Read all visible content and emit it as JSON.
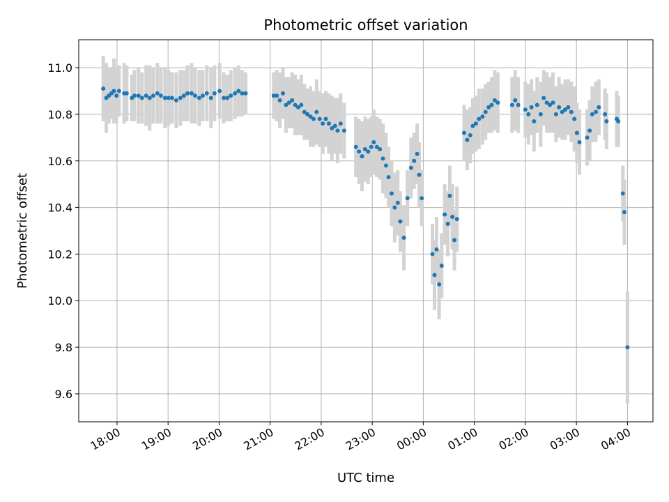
{
  "chart_data": {
    "type": "scatter",
    "title": "Photometric offset variation",
    "xlabel": "UTC time",
    "ylabel": "Photometric offset",
    "grid": true,
    "xlim_hours": [
      17.25,
      28.5
    ],
    "ylim": [
      9.48,
      11.12
    ],
    "x_ticks": [
      {
        "hour": 18,
        "label": "18:00"
      },
      {
        "hour": 19,
        "label": "19:00"
      },
      {
        "hour": 20,
        "label": "20:00"
      },
      {
        "hour": 21,
        "label": "21:00"
      },
      {
        "hour": 22,
        "label": "22:00"
      },
      {
        "hour": 23,
        "label": "23:00"
      },
      {
        "hour": 24,
        "label": "00:00"
      },
      {
        "hour": 25,
        "label": "01:00"
      },
      {
        "hour": 26,
        "label": "02:00"
      },
      {
        "hour": 27,
        "label": "03:00"
      },
      {
        "hour": 28,
        "label": "04:00"
      }
    ],
    "y_ticks": [
      {
        "value": 9.6,
        "label": "9.6"
      },
      {
        "value": 9.8,
        "label": "9.8"
      },
      {
        "value": 10.0,
        "label": "10.0"
      },
      {
        "value": 10.2,
        "label": "10.2"
      },
      {
        "value": 10.4,
        "label": "10.4"
      },
      {
        "value": 10.6,
        "label": "10.6"
      },
      {
        "value": 10.8,
        "label": "10.8"
      },
      {
        "value": 11.0,
        "label": "11.0"
      }
    ],
    "point_color": "#1f77b4",
    "errorbar_color": "#d3d3d3",
    "series": [
      {
        "columns": [
          "utc_hour",
          "offset",
          "error"
        ],
        "points": [
          [
            17.73,
            10.91,
            0.14
          ],
          [
            17.79,
            10.87,
            0.15
          ],
          [
            17.84,
            10.88,
            0.12
          ],
          [
            17.89,
            10.89,
            0.11
          ],
          [
            17.94,
            10.9,
            0.14
          ],
          [
            17.99,
            10.88,
            0.12
          ],
          [
            18.04,
            10.9,
            0.11
          ],
          [
            18.14,
            10.89,
            0.13
          ],
          [
            18.19,
            10.89,
            0.12
          ],
          [
            18.29,
            10.87,
            0.1
          ],
          [
            18.34,
            10.88,
            0.11
          ],
          [
            18.42,
            10.88,
            0.12
          ],
          [
            18.49,
            10.87,
            0.11
          ],
          [
            18.57,
            10.88,
            0.13
          ],
          [
            18.64,
            10.87,
            0.14
          ],
          [
            18.71,
            10.88,
            0.12
          ],
          [
            18.79,
            10.89,
            0.13
          ],
          [
            18.86,
            10.88,
            0.12
          ],
          [
            18.94,
            10.87,
            0.13
          ],
          [
            19.01,
            10.87,
            0.12
          ],
          [
            19.08,
            10.87,
            0.11
          ],
          [
            19.16,
            10.86,
            0.12
          ],
          [
            19.24,
            10.87,
            0.12
          ],
          [
            19.31,
            10.88,
            0.11
          ],
          [
            19.38,
            10.89,
            0.12
          ],
          [
            19.46,
            10.89,
            0.13
          ],
          [
            19.53,
            10.88,
            0.12
          ],
          [
            19.61,
            10.87,
            0.12
          ],
          [
            19.68,
            10.88,
            0.11
          ],
          [
            19.76,
            10.89,
            0.12
          ],
          [
            19.84,
            10.87,
            0.13
          ],
          [
            19.91,
            10.89,
            0.12
          ],
          [
            20.01,
            10.9,
            0.12
          ],
          [
            20.09,
            10.87,
            0.11
          ],
          [
            20.16,
            10.87,
            0.1
          ],
          [
            20.23,
            10.88,
            0.11
          ],
          [
            20.31,
            10.89,
            0.11
          ],
          [
            20.38,
            10.9,
            0.11
          ],
          [
            20.45,
            10.89,
            0.1
          ],
          [
            20.52,
            10.89,
            0.09
          ],
          [
            21.07,
            10.88,
            0.1
          ],
          [
            21.13,
            10.88,
            0.11
          ],
          [
            21.19,
            10.86,
            0.12
          ],
          [
            21.25,
            10.89,
            0.11
          ],
          [
            21.31,
            10.84,
            0.12
          ],
          [
            21.37,
            10.85,
            0.11
          ],
          [
            21.43,
            10.86,
            0.12
          ],
          [
            21.49,
            10.84,
            0.13
          ],
          [
            21.55,
            10.83,
            0.12
          ],
          [
            21.61,
            10.84,
            0.13
          ],
          [
            21.67,
            10.81,
            0.12
          ],
          [
            21.73,
            10.8,
            0.11
          ],
          [
            21.79,
            10.79,
            0.13
          ],
          [
            21.85,
            10.78,
            0.12
          ],
          [
            21.91,
            10.81,
            0.14
          ],
          [
            21.97,
            10.78,
            0.12
          ],
          [
            22.03,
            10.76,
            0.13
          ],
          [
            22.09,
            10.78,
            0.12
          ],
          [
            22.15,
            10.76,
            0.13
          ],
          [
            22.21,
            10.74,
            0.14
          ],
          [
            22.27,
            10.75,
            0.12
          ],
          [
            22.32,
            10.73,
            0.14
          ],
          [
            22.38,
            10.76,
            0.13
          ],
          [
            22.45,
            10.73,
            0.12
          ],
          [
            22.68,
            10.66,
            0.13
          ],
          [
            22.74,
            10.64,
            0.14
          ],
          [
            22.8,
            10.62,
            0.15
          ],
          [
            22.86,
            10.65,
            0.14
          ],
          [
            22.92,
            10.64,
            0.14
          ],
          [
            22.98,
            10.66,
            0.13
          ],
          [
            23.03,
            10.68,
            0.14
          ],
          [
            23.09,
            10.66,
            0.13
          ],
          [
            23.15,
            10.65,
            0.13
          ],
          [
            23.21,
            10.61,
            0.15
          ],
          [
            23.27,
            10.58,
            0.14
          ],
          [
            23.32,
            10.53,
            0.13
          ],
          [
            23.38,
            10.46,
            0.14
          ],
          [
            23.44,
            10.4,
            0.15
          ],
          [
            23.5,
            10.42,
            0.14
          ],
          [
            23.55,
            10.34,
            0.13
          ],
          [
            23.62,
            10.27,
            0.14
          ],
          [
            23.69,
            10.44,
            0.12
          ],
          [
            23.76,
            10.57,
            0.13
          ],
          [
            23.82,
            10.6,
            0.12
          ],
          [
            23.88,
            10.63,
            0.13
          ],
          [
            23.92,
            10.54,
            0.14
          ],
          [
            23.97,
            10.44,
            0.12
          ],
          [
            24.18,
            10.2,
            0.13
          ],
          [
            24.22,
            10.11,
            0.15
          ],
          [
            24.26,
            10.22,
            0.14
          ],
          [
            24.31,
            10.07,
            0.15
          ],
          [
            24.36,
            10.15,
            0.14
          ],
          [
            24.42,
            10.37,
            0.13
          ],
          [
            24.48,
            10.33,
            0.14
          ],
          [
            24.52,
            10.45,
            0.13
          ],
          [
            24.57,
            10.36,
            0.14
          ],
          [
            24.61,
            10.26,
            0.13
          ],
          [
            24.66,
            10.35,
            0.14
          ],
          [
            24.8,
            10.72,
            0.12
          ],
          [
            24.86,
            10.69,
            0.13
          ],
          [
            24.92,
            10.71,
            0.12
          ],
          [
            24.97,
            10.75,
            0.12
          ],
          [
            25.03,
            10.76,
            0.12
          ],
          [
            25.09,
            10.78,
            0.13
          ],
          [
            25.16,
            10.79,
            0.12
          ],
          [
            25.22,
            10.81,
            0.12
          ],
          [
            25.28,
            10.83,
            0.11
          ],
          [
            25.34,
            10.84,
            0.12
          ],
          [
            25.4,
            10.86,
            0.13
          ],
          [
            25.46,
            10.85,
            0.13
          ],
          [
            25.74,
            10.84,
            0.12
          ],
          [
            25.8,
            10.86,
            0.13
          ],
          [
            25.86,
            10.84,
            0.12
          ],
          [
            26.0,
            10.82,
            0.12
          ],
          [
            26.06,
            10.8,
            0.13
          ],
          [
            26.12,
            10.83,
            0.12
          ],
          [
            26.17,
            10.77,
            0.13
          ],
          [
            26.23,
            10.84,
            0.12
          ],
          [
            26.3,
            10.8,
            0.14
          ],
          [
            26.36,
            10.87,
            0.12
          ],
          [
            26.42,
            10.85,
            0.13
          ],
          [
            26.48,
            10.84,
            0.12
          ],
          [
            26.54,
            10.85,
            0.13
          ],
          [
            26.6,
            10.8,
            0.12
          ],
          [
            26.66,
            10.83,
            0.13
          ],
          [
            26.72,
            10.81,
            0.12
          ],
          [
            26.78,
            10.82,
            0.13
          ],
          [
            26.84,
            10.83,
            0.12
          ],
          [
            26.9,
            10.81,
            0.13
          ],
          [
            26.96,
            10.78,
            0.14
          ],
          [
            27.01,
            10.72,
            0.13
          ],
          [
            27.06,
            10.68,
            0.14
          ],
          [
            27.21,
            10.7,
            0.12
          ],
          [
            27.26,
            10.73,
            0.13
          ],
          [
            27.31,
            10.8,
            0.12
          ],
          [
            27.38,
            10.81,
            0.13
          ],
          [
            27.44,
            10.83,
            0.12
          ],
          [
            27.56,
            10.8,
            0.11
          ],
          [
            27.59,
            10.77,
            0.12
          ],
          [
            27.79,
            10.78,
            0.12
          ],
          [
            27.82,
            10.77,
            0.11
          ],
          [
            27.91,
            10.46,
            0.12
          ],
          [
            27.94,
            10.38,
            0.14
          ],
          [
            28.0,
            9.8,
            0.24
          ]
        ]
      }
    ]
  }
}
